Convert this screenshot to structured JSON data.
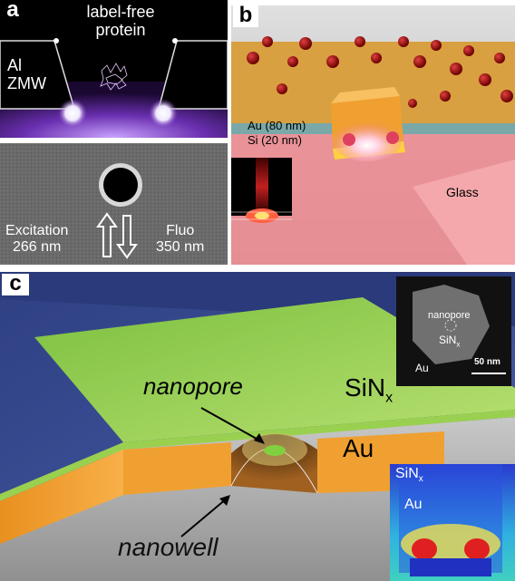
{
  "panel_a": {
    "label": "a",
    "protein_label_line1": "label-free",
    "protein_label_line2": "protein",
    "zmw_label_line1": "Al",
    "zmw_label_line2": "ZMW",
    "excitation_label": "Excitation",
    "excitation_wavelength": "266 nm",
    "fluo_label": "Fluo",
    "fluo_wavelength": "350 nm"
  },
  "panel_b": {
    "label": "b",
    "au_layer": "Au (80 nm)",
    "si_layer": "Si (20 nm)",
    "glass_label": "Glass"
  },
  "panel_c": {
    "label": "c",
    "nanopore_label": "nanopore",
    "nanowell_label": "nanowell",
    "sinx_label": "SiN",
    "sinx_sub": "x",
    "au_label": "Au",
    "inset_top": {
      "nanopore": "nanopore",
      "sinx": "SiN",
      "sinx_sub": "x",
      "au": "Au",
      "scalebar": "50 nm"
    },
    "inset_bottom": {
      "sinx": "SiN",
      "sinx_sub": "x",
      "au": "Au"
    }
  },
  "colors": {
    "sinx_green": "#a6d95a",
    "gold": "#f0a030",
    "glass_pink": "#f07a82",
    "nanoparticle_red": "#a01010"
  }
}
